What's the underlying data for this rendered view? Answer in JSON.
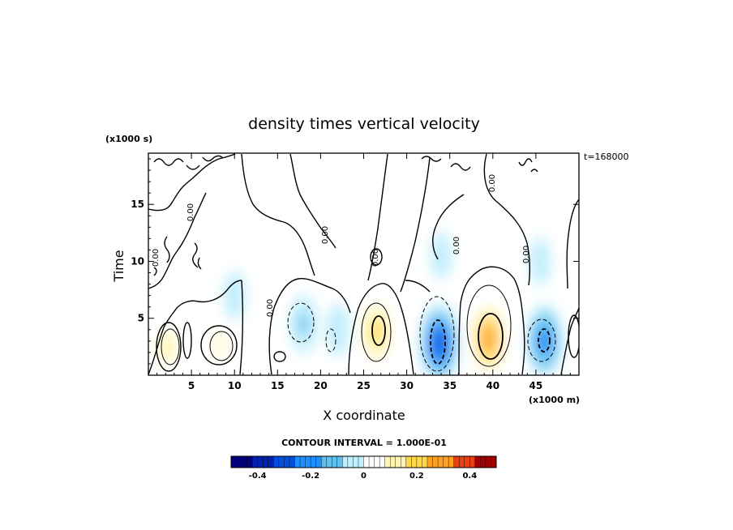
{
  "chart_data": {
    "type": "heatmap",
    "title": "density times vertical velocity",
    "timestamp": "t=168000",
    "xlabel": "X coordinate",
    "ylabel": "Time",
    "x_unit_label": "(x1000 m)",
    "y_unit_label": "(x1000 s)",
    "xlim": [
      0,
      50
    ],
    "ylim": [
      0,
      19.5
    ],
    "x_ticks": [
      5,
      10,
      15,
      20,
      25,
      30,
      35,
      40,
      45
    ],
    "x_tick_labels": [
      "5",
      "10",
      "15",
      "20",
      "25",
      "30",
      "35",
      "40",
      "45"
    ],
    "y_ticks": [
      5,
      10,
      15
    ],
    "y_tick_labels": [
      "5",
      "10",
      "15"
    ],
    "contour_interval_label": "CONTOUR INTERVAL = 1.000E-01",
    "contour_labels": [
      "0.00",
      "0.00",
      "0.00",
      "0.00",
      "0.00",
      "0.00",
      "0.00",
      "0.00"
    ],
    "colorbar": {
      "range": [
        -0.5,
        0.5
      ],
      "ticks": [
        -0.4,
        -0.2,
        0,
        0.2,
        0.4
      ],
      "tick_labels": [
        "-0.4",
        "-0.2",
        "0",
        "0.2",
        "0.4"
      ],
      "colors": [
        "#00007f",
        "#0020b0",
        "#0050e0",
        "#1e90ff",
        "#5fc0f0",
        "#bfeefc",
        "#ffffff",
        "#fff5b0",
        "#ffd84a",
        "#ffa020",
        "#e84010",
        "#a00000"
      ]
    },
    "features": [
      {
        "x": 2.2,
        "y": 2.5,
        "value": 0.15
      },
      {
        "x": 8.3,
        "y": 2.7,
        "value": 0.13
      },
      {
        "x": 4.5,
        "y": 6.5,
        "value": 0.04
      },
      {
        "x": 10.0,
        "y": 7.0,
        "value": -0.05
      },
      {
        "x": 18.0,
        "y": 4.5,
        "value": -0.13
      },
      {
        "x": 22.0,
        "y": 4.0,
        "value": -0.08
      },
      {
        "x": 26.5,
        "y": 3.8,
        "value": 0.22
      },
      {
        "x": 33.8,
        "y": 2.8,
        "value": -0.33
      },
      {
        "x": 39.5,
        "y": 3.2,
        "value": 0.32
      },
      {
        "x": 46.0,
        "y": 3.0,
        "value": -0.26
      },
      {
        "x": 16.0,
        "y": 11.0,
        "value": 0.03
      },
      {
        "x": 39.0,
        "y": 10.0,
        "value": 0.04
      },
      {
        "x": 34.0,
        "y": 10.5,
        "value": -0.04
      },
      {
        "x": 45.5,
        "y": 10.0,
        "value": -0.04
      }
    ]
  }
}
